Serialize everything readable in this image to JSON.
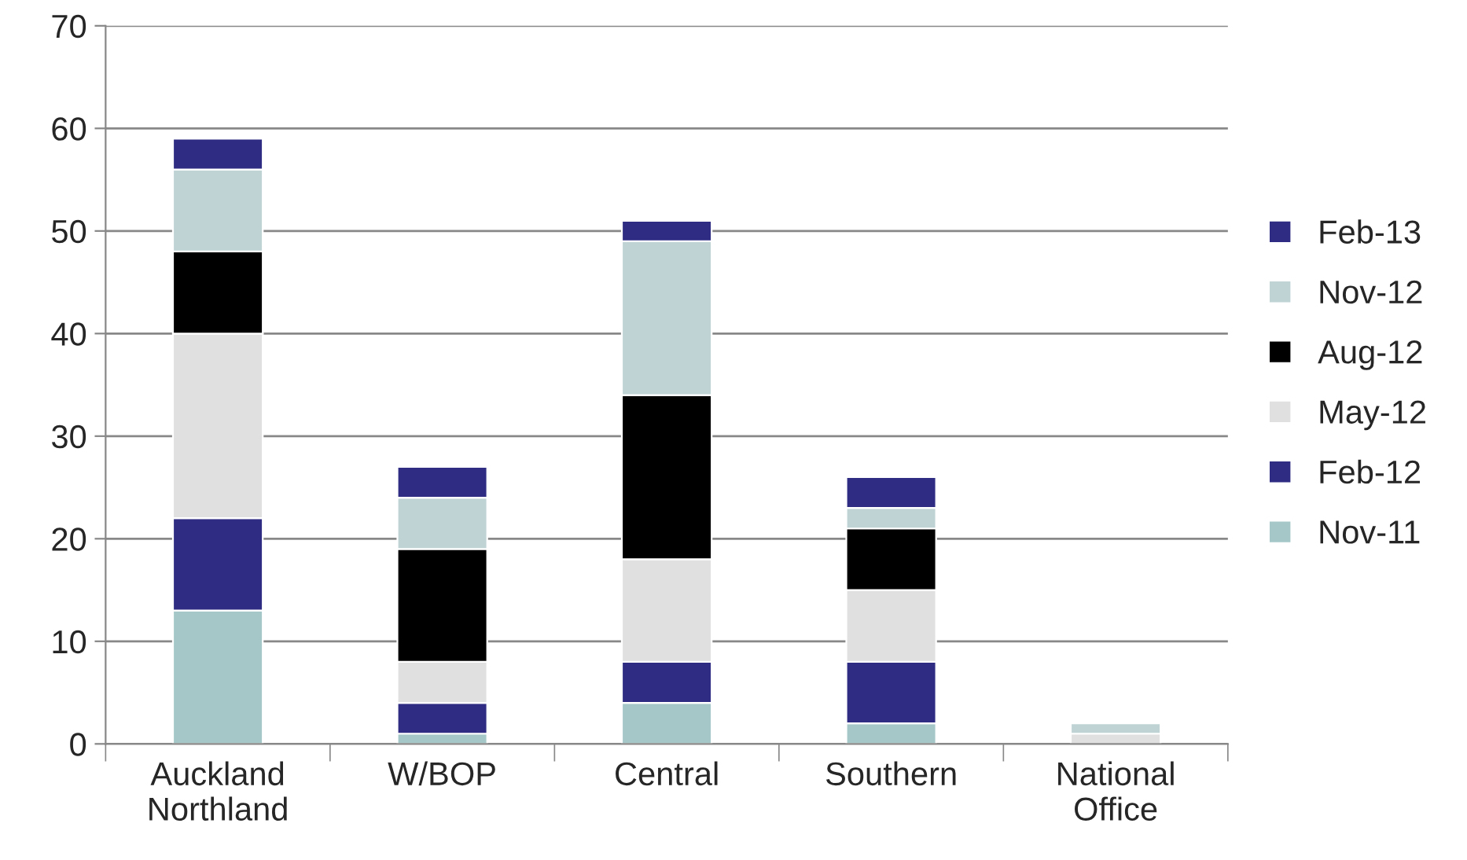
{
  "chart_data": {
    "type": "bar",
    "stacked": true,
    "categories": [
      "Auckland\nNorthland",
      "W/BOP",
      "Central",
      "Southern",
      "National\nOffice"
    ],
    "series": [
      {
        "name": "Nov-11",
        "color": "#a5c7c8",
        "values": [
          13,
          1,
          4,
          2,
          null
        ]
      },
      {
        "name": "Feb-12",
        "color": "#2e2d83",
        "values": [
          9,
          3,
          4,
          6,
          null
        ]
      },
      {
        "name": "May-12",
        "color": "#e0e0e0",
        "values": [
          18,
          4,
          10,
          7,
          1
        ]
      },
      {
        "name": "Aug-12",
        "color": "#000000",
        "values": [
          8,
          11,
          16,
          6,
          null
        ]
      },
      {
        "name": "Nov-12",
        "color": "#bfd3d5",
        "values": [
          8,
          5,
          15,
          2,
          1
        ]
      },
      {
        "name": "Feb-13",
        "color": "#2e2d83",
        "values": [
          3,
          3,
          2,
          3,
          null
        ]
      }
    ],
    "ylim": [
      0,
      70
    ],
    "yticks": [
      0,
      10,
      20,
      30,
      40,
      50,
      60,
      70
    ],
    "grid": "y",
    "legend": "right"
  }
}
